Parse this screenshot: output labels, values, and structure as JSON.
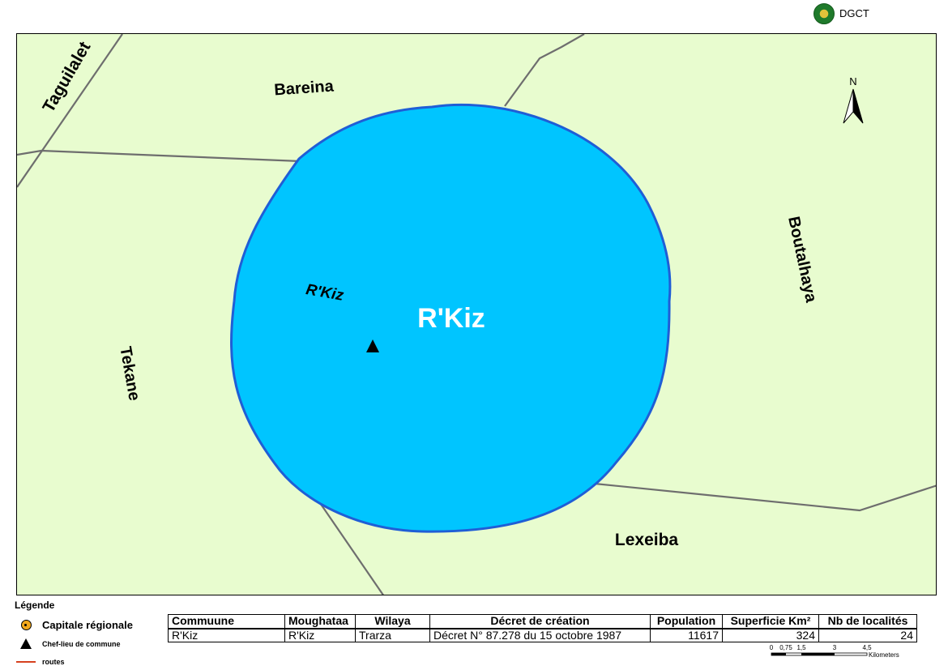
{
  "header": {
    "org": "DGCT",
    "logo_icon": "emblem-icon"
  },
  "map": {
    "colors": {
      "background": "#e8fccf",
      "commune_fill": "#00c5ff",
      "commune_border": "#1f5ed6",
      "boundary": "#6e6e6e"
    },
    "commune_label": "R'Kiz",
    "chef_lieu_label": "R'Kiz",
    "neighbors": {
      "north": "Bareina",
      "northwest": "Taguilalet",
      "east": "Boutalhaya",
      "west": "Tekane",
      "south": "Lexeiba"
    },
    "north_arrow": "N"
  },
  "legend": {
    "title": "Légende",
    "items": [
      {
        "label": "Capitale régionale",
        "icon": "regional-capital-icon"
      },
      {
        "label": "Chef-lieu de commune",
        "icon": "triangle-icon"
      },
      {
        "label": "routes",
        "icon": "road-line-icon"
      }
    ]
  },
  "table": {
    "headers": [
      "Commuune",
      "Moughataa",
      "Wilaya",
      "Décret de création",
      "Population",
      "Superficie Km²",
      "Nb de localités"
    ],
    "row": [
      "R'Kiz",
      "R'Kiz",
      "Trarza",
      "Décret N° 87.278 du 15 octobre 1987",
      "11617",
      "324",
      "24"
    ]
  },
  "scale": {
    "ticks": [
      "0",
      "0,75",
      "1,5",
      "3",
      "4,5"
    ],
    "unit": "Kilometers"
  }
}
